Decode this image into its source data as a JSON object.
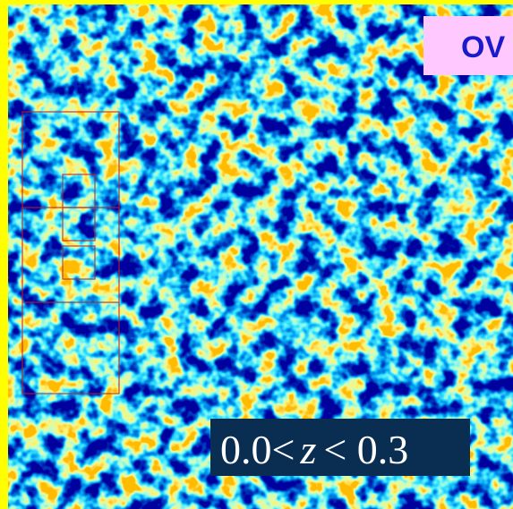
{
  "label_top": "OV",
  "redshift_label": {
    "lower": "0.0<",
    "variable": "z",
    "upper": "< 0.3"
  }
}
